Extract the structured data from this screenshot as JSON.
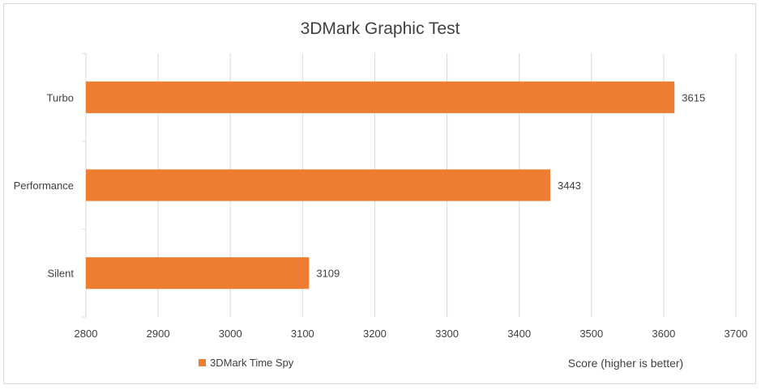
{
  "chart_data": {
    "type": "bar",
    "orientation": "horizontal",
    "title": "3DMark Graphic Test",
    "categories": [
      "Turbo",
      "Performance",
      "Silent"
    ],
    "series": [
      {
        "name": "3DMark Time Spy",
        "values": [
          3615,
          3443,
          3109
        ],
        "color": "#ed7d31"
      }
    ],
    "xlabel": "Score (higher is better)",
    "ylabel": "",
    "xlim": [
      2800,
      3700
    ],
    "xticks": [
      2800,
      2900,
      3000,
      3100,
      3200,
      3300,
      3400,
      3500,
      3600,
      3700
    ],
    "grid": true,
    "legend": "bottom-left",
    "colors": {
      "bar": "#ed7d31",
      "grid": "#d9d9d9",
      "text": "#404040"
    }
  }
}
